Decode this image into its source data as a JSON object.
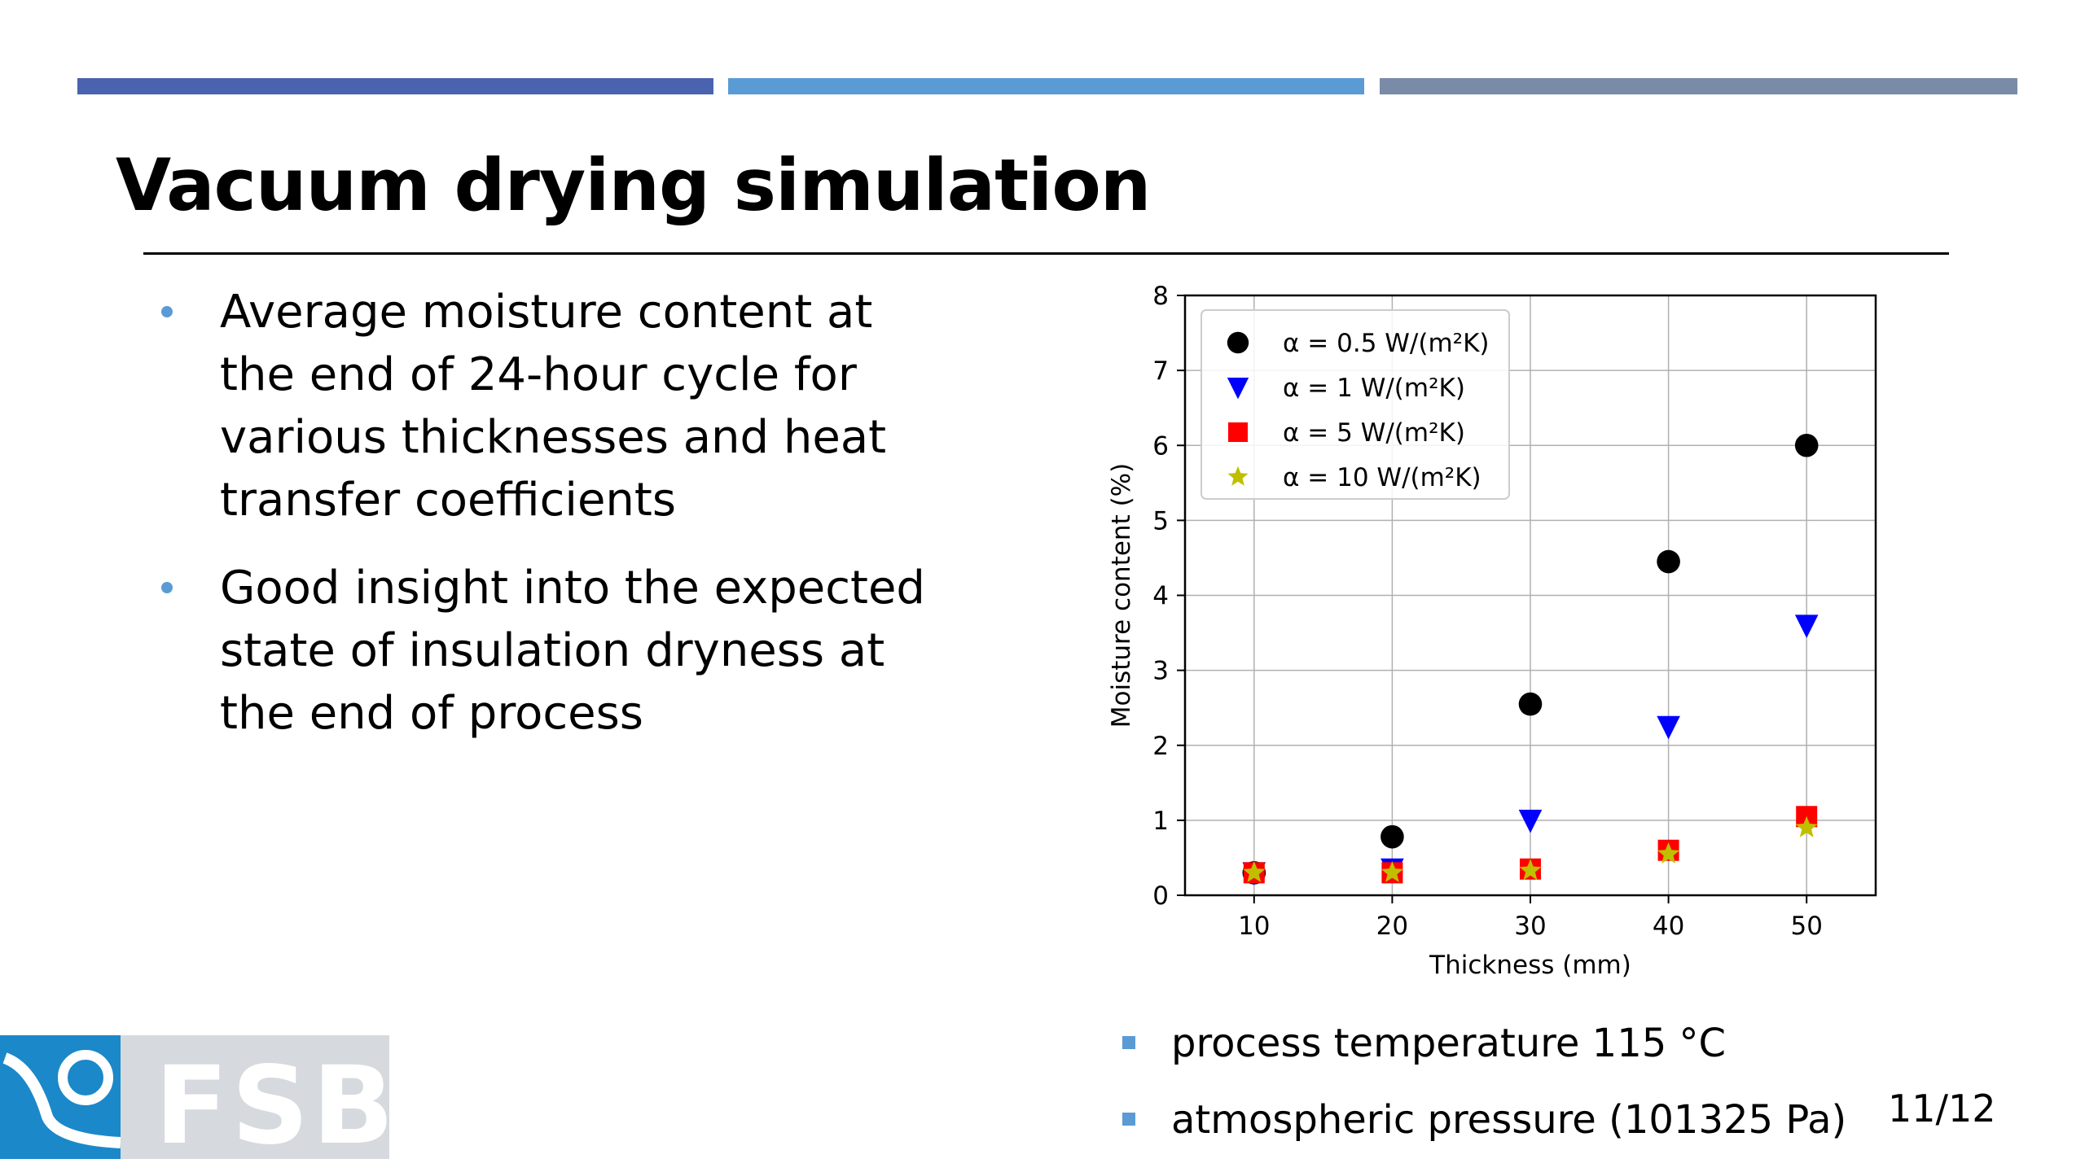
{
  "slide": {
    "title": "Vacuum drying simulation",
    "page": "11/12"
  },
  "bullets": [
    {
      "lines": [
        "Average moisture content at",
        "the end of 24-hour cycle for",
        "various thicknesses and heat",
        "transfer coefficients"
      ]
    },
    {
      "lines": [
        "Good insight into the expected",
        "state of insulation dryness at",
        "the end of process"
      ]
    }
  ],
  "notes": [
    "process temperature 115 °C",
    "atmospheric pressure (101325 Pa)"
  ],
  "logo": {
    "text": "FSB"
  },
  "colors": {
    "bar1": "#4a63ae",
    "bar2": "#5b9bd5",
    "bar3": "#7a8ba8",
    "bullet": "#5b9bd5",
    "logo_blue": "#1b88c9"
  },
  "chart_data": {
    "type": "scatter",
    "xlabel": "Thickness (mm)",
    "ylabel": "Moisture content (%)",
    "xticks": [
      10,
      20,
      30,
      40,
      50
    ],
    "yticks": [
      0,
      1,
      2,
      3,
      4,
      5,
      6,
      7,
      8
    ],
    "xlim": [
      5,
      55
    ],
    "ylim": [
      0,
      8
    ],
    "grid": true,
    "legend_position": "top-left",
    "x": [
      10,
      20,
      30,
      40,
      50
    ],
    "series": [
      {
        "name": "α = 0.5 W/(m²K)",
        "marker": "circle",
        "color": "#000000",
        "values": [
          0.3,
          0.78,
          2.55,
          4.45,
          6.0
        ]
      },
      {
        "name": "α = 1 W/(m²K)",
        "marker": "triangle-down",
        "color": "#0000ff",
        "values": [
          0.3,
          0.35,
          1.0,
          2.25,
          3.6
        ]
      },
      {
        "name": "α = 5 W/(m²K)",
        "marker": "square",
        "color": "#ff0000",
        "values": [
          0.3,
          0.3,
          0.35,
          0.6,
          1.05
        ]
      },
      {
        "name": "α = 10 W/(m²K)",
        "marker": "star",
        "color": "#bfbf00",
        "values": [
          0.3,
          0.3,
          0.33,
          0.55,
          0.9
        ]
      }
    ]
  }
}
